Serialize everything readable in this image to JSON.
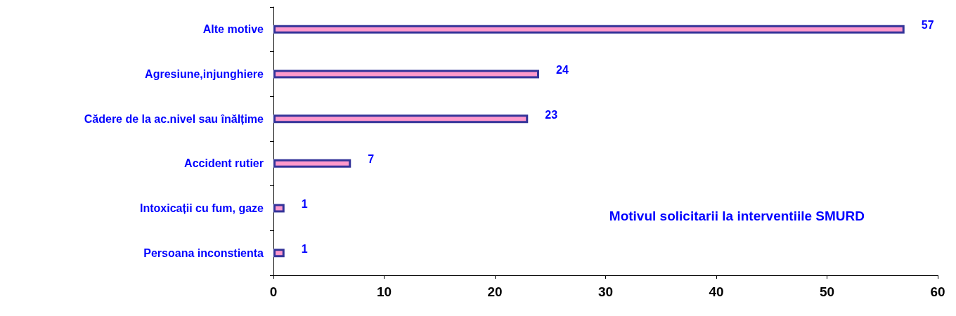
{
  "chart_data": {
    "type": "bar",
    "orientation": "horizontal",
    "title": "Motivul solicitarii la interventiile SMURD",
    "categories": [
      "Alte motive",
      "Agresiune,injunghiere",
      "Cădere de la ac.nivel sau înălțime",
      "Accident rutier",
      "Intoxicații cu fum, gaze",
      "Persoana inconstienta"
    ],
    "values": [
      57,
      24,
      23,
      7,
      1,
      1
    ],
    "color": "#ff99cc",
    "xlim": [
      0,
      60
    ],
    "xticks": [
      0,
      10,
      20,
      30,
      40,
      50,
      60
    ],
    "grid": false,
    "data_labels": true
  }
}
